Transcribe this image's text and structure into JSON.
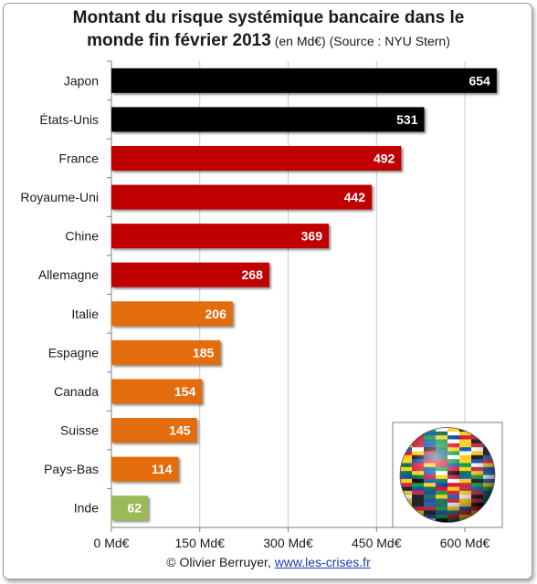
{
  "title_line1": "Montant du risque systémique bancaire dans le",
  "title_line2": "monde fin février 2013",
  "title_note": " (en Md€) (Source : NYU Stern)",
  "credit_prefix": "© Olivier Berruyer, ",
  "credit_link": "www.les-crises.fr",
  "chart_data": {
    "type": "bar",
    "orientation": "horizontal",
    "categories": [
      "Japon",
      "États-Unis",
      "France",
      "Royaume-Uni",
      "Chine",
      "Allemagne",
      "Italie",
      "Espagne",
      "Canada",
      "Suisse",
      "Pays-Bas",
      "Inde"
    ],
    "values": [
      654,
      531,
      492,
      442,
      369,
      268,
      206,
      185,
      154,
      145,
      114,
      62
    ],
    "bar_colors": [
      "#000000",
      "#000000",
      "#c00000",
      "#c00000",
      "#c00000",
      "#c00000",
      "#e36c09",
      "#e36c09",
      "#e36c09",
      "#e36c09",
      "#e36c09",
      "#9bbb59"
    ],
    "xlim": [
      0,
      660
    ],
    "x_ticks": [
      0,
      150,
      300,
      450,
      600
    ],
    "x_tick_labels": [
      "0 Md€",
      "150 Md€",
      "300 Md€",
      "450 Md€",
      "600 Md€"
    ],
    "grid": true,
    "xlabel": "",
    "ylabel": ""
  }
}
